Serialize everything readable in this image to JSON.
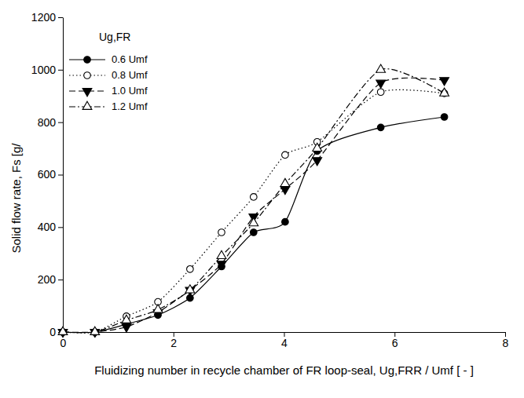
{
  "chart_data": {
    "type": "line",
    "x_label": "Fluidizing number in recycle chamber of FR loop-seal, Ug,FRR / Umf [ - ]",
    "y_label": "Solid flow rate, Fs [g/",
    "legend_title": "Ug,FR",
    "x": [
      0,
      0.58,
      1.15,
      1.72,
      2.3,
      2.87,
      3.45,
      4.02,
      4.6,
      5.75,
      6.9
    ],
    "series": [
      {
        "name": "0.6 Umf",
        "color": "#000000",
        "marker": "circle-filled",
        "line_style": "solid",
        "values": [
          0,
          0,
          30,
          65,
          130,
          250,
          380,
          420,
          690,
          780,
          820
        ]
      },
      {
        "name": "0.8 Umf",
        "color": "#000000",
        "marker": "circle-open",
        "line_style": "dotted",
        "values": [
          0,
          0,
          60,
          115,
          240,
          380,
          515,
          675,
          725,
          915,
          910
        ]
      },
      {
        "name": "1.0 Umf",
        "color": "#000000",
        "marker": "triangle-down-filled",
        "line_style": "dashed",
        "values": [
          0,
          0,
          20,
          75,
          160,
          260,
          440,
          545,
          655,
          950,
          960
        ]
      },
      {
        "name": "1.2 Umf",
        "color": "#000000",
        "marker": "triangle-up-open",
        "line_style": "dash-dot",
        "values": [
          0,
          0,
          45,
          85,
          160,
          290,
          415,
          565,
          700,
          1000,
          910
        ]
      }
    ],
    "xlim": [
      0,
      8
    ],
    "xticks": [
      0,
      2,
      4,
      6,
      8
    ],
    "ylim": [
      0,
      1200
    ],
    "yticks": [
      0,
      200,
      400,
      600,
      800,
      1000,
      1200
    ],
    "grid": false,
    "legend": "top-left"
  }
}
